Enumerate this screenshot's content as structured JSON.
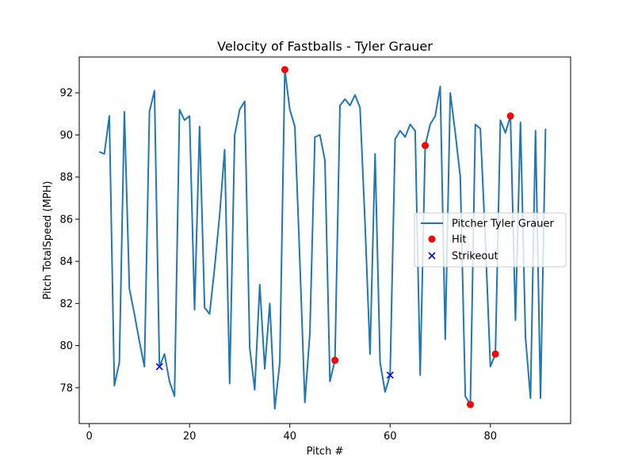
{
  "chart_data": {
    "type": "line",
    "title": "Velocity of Fastballs - Tyler Grauer",
    "xlabel": "Pitch #",
    "ylabel": "Pitch TotalSpeed (MPH)",
    "xlim": [
      -2,
      96
    ],
    "ylim": [
      76.3,
      93.7
    ],
    "xticks": [
      0,
      20,
      40,
      60,
      80
    ],
    "yticks": [
      78,
      80,
      82,
      84,
      86,
      88,
      90,
      92
    ],
    "grid": false,
    "legend_position": "center-right",
    "colors": {
      "line": "#1f77b4",
      "hit": "#ff0000",
      "strikeout": "#0000ff"
    },
    "series": [
      {
        "name": "Pitcher Tyler Grauer",
        "kind": "line",
        "x": [
          2,
          3,
          4,
          5,
          6,
          7,
          8,
          9,
          10,
          11,
          12,
          13,
          14,
          15,
          16,
          17,
          18,
          19,
          20,
          21,
          22,
          23,
          24,
          25,
          26,
          27,
          28,
          29,
          30,
          31,
          32,
          33,
          34,
          35,
          36,
          37,
          38,
          39,
          40,
          41,
          42,
          43,
          44,
          45,
          46,
          47,
          48,
          49,
          50,
          51,
          52,
          53,
          54,
          55,
          56,
          57,
          58,
          59,
          60,
          61,
          62,
          63,
          64,
          65,
          66,
          67,
          68,
          69,
          70,
          71,
          72,
          73,
          74,
          75,
          76,
          77,
          78,
          79,
          80,
          81,
          82,
          83,
          84,
          85,
          86,
          87,
          88,
          89,
          90,
          91
        ],
        "y": [
          89.2,
          89.1,
          90.9,
          78.1,
          79.2,
          91.1,
          82.7,
          81.5,
          80.2,
          79.0,
          91.1,
          92.1,
          79.0,
          79.6,
          78.3,
          77.6,
          91.2,
          90.7,
          90.9,
          81.7,
          90.4,
          81.8,
          81.5,
          83.7,
          86.2,
          89.3,
          78.2,
          90.0,
          91.2,
          91.6,
          79.9,
          77.9,
          82.9,
          78.9,
          82.0,
          77.0,
          79.2,
          93.1,
          91.2,
          90.4,
          84.0,
          77.3,
          80.6,
          89.9,
          90.0,
          88.8,
          78.3,
          79.3,
          91.4,
          91.7,
          91.4,
          91.9,
          91.3,
          85.8,
          79.6,
          89.1,
          79.2,
          77.8,
          78.6,
          89.8,
          90.2,
          89.9,
          90.5,
          90.2,
          78.6,
          89.5,
          90.5,
          90.9,
          92.3,
          80.3,
          92.0,
          90.1,
          88.0,
          77.6,
          77.2,
          90.5,
          90.3,
          85.0,
          79.0,
          79.6,
          90.7,
          90.1,
          90.9,
          81.2,
          90.6,
          80.4,
          77.5,
          90.2,
          77.5,
          90.3
        ]
      },
      {
        "name": "Hit",
        "kind": "scatter",
        "marker": "circle",
        "x": [
          39,
          49,
          67,
          76,
          81,
          84
        ],
        "y": [
          93.1,
          79.3,
          89.5,
          77.2,
          79.6,
          90.9
        ]
      },
      {
        "name": "Strikeout",
        "kind": "scatter",
        "marker": "x",
        "x": [
          14,
          60
        ],
        "y": [
          79.0,
          78.6
        ]
      }
    ]
  }
}
